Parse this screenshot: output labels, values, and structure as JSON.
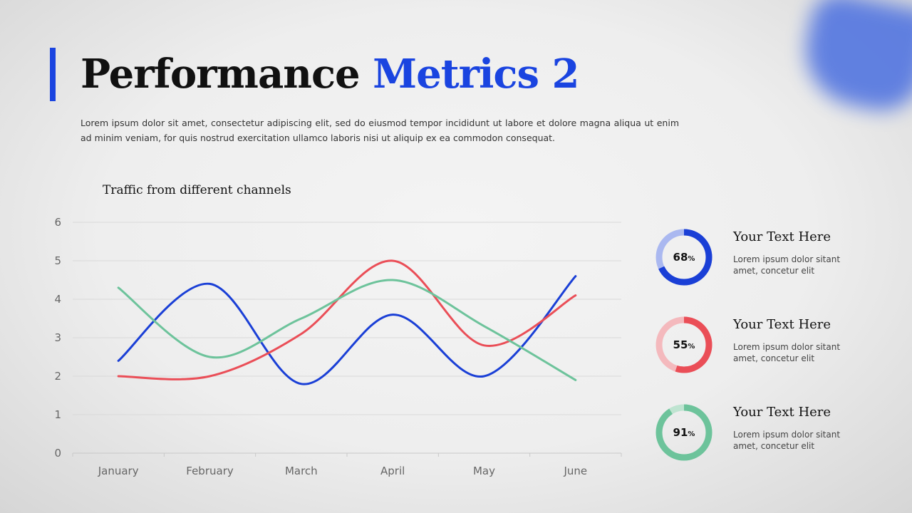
{
  "slide": {
    "title_main": "Performance",
    "title_highlight": "Metrics 2",
    "intro": "Lorem ipsum dolor sit amet, consectetur adipiscing elit, sed do eiusmod tempor incididunt ut labore et dolore magna aliqua ut enim ad minim veniam, for quis nostrud exercitation ullamco laboris nisi ut aliquip ex ea commodon consequat."
  },
  "colors": {
    "accent": "#1a44e0",
    "blue": "#1a3fd6",
    "red": "#ea4e57",
    "green": "#6dc39b",
    "blue_light": "#aab8f0",
    "red_light": "#f4b9bd",
    "green_light": "#bfe4d1"
  },
  "chart_data": {
    "type": "line",
    "title": "Traffic from different channels",
    "categories": [
      "January",
      "February",
      "March",
      "April",
      "May",
      "June"
    ],
    "ylim": [
      0,
      6
    ],
    "yticks": [
      "0",
      "1",
      "2",
      "3",
      "4",
      "5",
      "6"
    ],
    "grid": true,
    "legend": "none",
    "series": [
      {
        "color": "#1a3fd6",
        "values": [
          2.4,
          4.4,
          1.8,
          3.6,
          2.0,
          4.6
        ]
      },
      {
        "color": "#ea4e57",
        "values": [
          2.0,
          2.0,
          3.1,
          5.0,
          2.8,
          4.1
        ]
      },
      {
        "color": "#6dc39b",
        "values": [
          4.3,
          2.5,
          3.5,
          4.5,
          3.3,
          1.9
        ]
      }
    ]
  },
  "stats": [
    {
      "value": "68",
      "unit": "%",
      "percent": 68,
      "color": "#1a3fd6",
      "track": "#aab8f0",
      "heading": "Your Text Here",
      "desc": "Lorem ipsum dolor sitant amet, concetur elit"
    },
    {
      "value": "55",
      "unit": "%",
      "percent": 55,
      "color": "#ea4e57",
      "track": "#f4b9bd",
      "heading": "Your Text Here",
      "desc": "Lorem ipsum dolor sitant amet, concetur elit"
    },
    {
      "value": "91",
      "unit": "%",
      "percent": 91,
      "color": "#6dc39b",
      "track": "#bfe4d1",
      "heading": "Your Text Here",
      "desc": "Lorem ipsum dolor sitant amet, concetur elit"
    }
  ]
}
